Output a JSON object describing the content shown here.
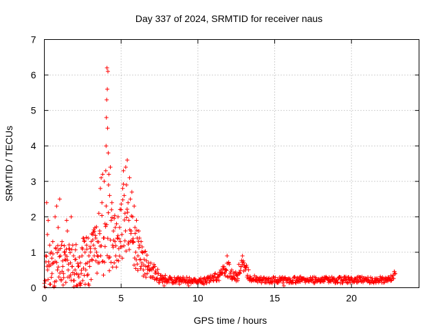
{
  "chart_data": {
    "type": "scatter",
    "title": "Day 337 of 2024, SRMTID for receiver naus",
    "xlabel": "GPS time / hours",
    "ylabel": "SRMTID / TECUs",
    "xlim": [
      0,
      24.4
    ],
    "ylim": [
      0,
      7
    ],
    "xticks": [
      0,
      5,
      10,
      15,
      20
    ],
    "yticks": [
      0,
      1,
      2,
      3,
      4,
      5,
      6,
      7
    ],
    "xtick_labels": [
      "0",
      "5",
      "10",
      "15",
      "20"
    ],
    "ytick_labels": [
      "0",
      "1",
      "2",
      "3",
      "4",
      "5",
      "6",
      "7"
    ],
    "grid": true,
    "marker": "+",
    "color": "#ff0000",
    "series": [
      {
        "name": "SRMTID",
        "points": [
          [
            0.05,
            0.2
          ],
          [
            0.1,
            0.9
          ],
          [
            0.15,
            2.4
          ],
          [
            0.2,
            1.5
          ],
          [
            0.25,
            1.9
          ],
          [
            0.3,
            0.6
          ],
          [
            0.35,
            1.2
          ],
          [
            0.4,
            0.1
          ],
          [
            0.45,
            1.0
          ],
          [
            0.5,
            0.4
          ],
          [
            0.55,
            1.3
          ],
          [
            0.6,
            0.7
          ],
          [
            0.65,
            0.05
          ],
          [
            0.7,
            2.0
          ],
          [
            0.75,
            1.1
          ],
          [
            0.8,
            2.3
          ],
          [
            0.85,
            0.5
          ],
          [
            0.9,
            1.7
          ],
          [
            0.95,
            0.3
          ],
          [
            1.0,
            2.5
          ],
          [
            1.05,
            0.9
          ],
          [
            1.1,
            0.2
          ],
          [
            1.15,
            1.3
          ],
          [
            1.2,
            0.6
          ],
          [
            1.25,
            0.4
          ],
          [
            1.3,
            1.0
          ],
          [
            1.35,
            0.8
          ],
          [
            1.4,
            0.15
          ],
          [
            1.45,
            1.9
          ],
          [
            1.5,
            1.6
          ],
          [
            1.55,
            0.5
          ],
          [
            1.6,
            1.1
          ],
          [
            1.65,
            0.3
          ],
          [
            1.7,
            0.7
          ],
          [
            1.75,
            2.0
          ],
          [
            1.8,
            0.6
          ],
          [
            1.85,
            1.2
          ],
          [
            1.9,
            0.9
          ],
          [
            1.95,
            0.2
          ],
          [
            2.0,
            0.5
          ],
          [
            2.05,
            0.8
          ],
          [
            2.1,
            0.4
          ],
          [
            2.15,
            0.05
          ],
          [
            2.2,
            0.6
          ],
          [
            2.25,
            0.3
          ],
          [
            2.3,
            0.1
          ],
          [
            2.35,
            0.7
          ],
          [
            2.4,
            0.4
          ],
          [
            2.45,
            0.9
          ],
          [
            2.5,
            0.2
          ],
          [
            2.55,
            0.55
          ],
          [
            2.6,
            0.35
          ],
          [
            2.65,
            1.0
          ],
          [
            2.7,
            0.5
          ],
          [
            2.75,
            1.2
          ],
          [
            2.8,
            0.7
          ],
          [
            2.85,
            1.4
          ],
          [
            2.9,
            0.9
          ],
          [
            2.95,
            0.6
          ],
          [
            3.0,
            1.1
          ],
          [
            3.05,
            1.3
          ],
          [
            3.1,
            0.8
          ],
          [
            3.15,
            1.5
          ],
          [
            3.2,
            1.2
          ],
          [
            3.25,
            0.9
          ],
          [
            3.3,
            1.1
          ],
          [
            3.35,
            1.4
          ],
          [
            3.4,
            1.0
          ],
          [
            3.45,
            1.3
          ],
          [
            3.5,
            0.7
          ],
          [
            3.55,
            2.1
          ],
          [
            3.6,
            1.6
          ],
          [
            3.65,
            2.8
          ],
          [
            3.7,
            3.1
          ],
          [
            3.75,
            2.4
          ],
          [
            3.8,
            3.2
          ],
          [
            3.85,
            1.4
          ],
          [
            3.9,
            3.0
          ],
          [
            3.95,
            1.8
          ],
          [
            4.0,
            3.3
          ],
          [
            4.02,
            4.0
          ],
          [
            4.04,
            4.8
          ],
          [
            4.06,
            5.3
          ],
          [
            4.08,
            6.2
          ],
          [
            4.1,
            5.6
          ],
          [
            4.12,
            4.5
          ],
          [
            4.14,
            6.1
          ],
          [
            4.16,
            3.8
          ],
          [
            4.18,
            2.9
          ],
          [
            4.2,
            3.2
          ],
          [
            4.25,
            2.6
          ],
          [
            4.3,
            3.4
          ],
          [
            4.35,
            1.9
          ],
          [
            4.4,
            2.4
          ],
          [
            4.45,
            1.2
          ],
          [
            4.5,
            1.6
          ],
          [
            4.55,
            0.7
          ],
          [
            4.6,
            1.3
          ],
          [
            4.65,
            0.9
          ],
          [
            4.7,
            1.8
          ],
          [
            4.75,
            1.4
          ],
          [
            4.8,
            2.0
          ],
          [
            4.85,
            1.1
          ],
          [
            4.9,
            1.7
          ],
          [
            4.95,
            1.3
          ],
          [
            5.0,
            2.2
          ],
          [
            5.05,
            1.5
          ],
          [
            5.1,
            2.8
          ],
          [
            5.15,
            3.3
          ],
          [
            5.2,
            2.6
          ],
          [
            5.25,
            2.1
          ],
          [
            5.3,
            3.4
          ],
          [
            5.35,
            2.9
          ],
          [
            5.4,
            3.6
          ],
          [
            5.45,
            2.4
          ],
          [
            5.5,
            1.9
          ],
          [
            5.55,
            3.1
          ],
          [
            5.6,
            2.5
          ],
          [
            5.65,
            1.6
          ],
          [
            5.7,
            2.7
          ],
          [
            5.75,
            2.0
          ],
          [
            5.8,
            1.3
          ],
          [
            5.85,
            2.3
          ],
          [
            5.9,
            1.7
          ],
          [
            5.95,
            1.0
          ],
          [
            6.0,
            1.9
          ],
          [
            6.05,
            1.4
          ],
          [
            6.1,
            0.9
          ],
          [
            6.15,
            1.6
          ],
          [
            6.2,
            1.2
          ],
          [
            6.25,
            0.8
          ],
          [
            6.3,
            1.3
          ],
          [
            6.35,
            0.7
          ],
          [
            6.4,
            1.0
          ],
          [
            6.45,
            0.5
          ],
          [
            6.5,
            0.8
          ],
          [
            6.6,
            0.6
          ],
          [
            6.7,
            0.4
          ],
          [
            6.8,
            0.7
          ],
          [
            6.9,
            0.3
          ],
          [
            7.0,
            0.5
          ],
          [
            7.1,
            0.3
          ],
          [
            7.2,
            0.6
          ],
          [
            7.3,
            0.25
          ],
          [
            7.4,
            0.4
          ],
          [
            7.5,
            0.2
          ],
          [
            7.6,
            0.35
          ],
          [
            7.7,
            0.15
          ],
          [
            7.8,
            0.05
          ],
          [
            7.9,
            0.25
          ],
          [
            8.0,
            0.2
          ],
          [
            8.2,
            0.3
          ],
          [
            8.4,
            0.15
          ],
          [
            8.6,
            0.25
          ],
          [
            8.8,
            0.1
          ],
          [
            9.0,
            0.2
          ],
          [
            9.2,
            0.15
          ],
          [
            9.4,
            0.05
          ],
          [
            9.6,
            0.2
          ],
          [
            9.8,
            0.25
          ],
          [
            10.0,
            0.15
          ],
          [
            10.2,
            0.2
          ],
          [
            10.4,
            0.1
          ],
          [
            10.6,
            0.25
          ],
          [
            10.8,
            0.2
          ],
          [
            11.0,
            0.3
          ],
          [
            11.2,
            0.2
          ],
          [
            11.4,
            0.35
          ],
          [
            11.5,
            0.5
          ],
          [
            11.6,
            0.4
          ],
          [
            11.7,
            0.6
          ],
          [
            11.8,
            0.5
          ],
          [
            11.9,
            0.9
          ],
          [
            12.0,
            0.7
          ],
          [
            12.1,
            0.4
          ],
          [
            12.2,
            0.5
          ],
          [
            12.3,
            0.3
          ],
          [
            12.4,
            0.25
          ],
          [
            12.5,
            0.35
          ],
          [
            12.6,
            0.2
          ],
          [
            12.7,
            0.4
          ],
          [
            12.8,
            0.6
          ],
          [
            12.9,
            0.9
          ],
          [
            13.0,
            0.7
          ],
          [
            13.1,
            0.5
          ],
          [
            13.2,
            0.3
          ],
          [
            13.4,
            0.25
          ],
          [
            13.6,
            0.2
          ],
          [
            13.8,
            0.3
          ],
          [
            14.0,
            0.2
          ],
          [
            14.2,
            0.25
          ],
          [
            14.4,
            0.15
          ],
          [
            14.6,
            0.2
          ],
          [
            14.8,
            0.25
          ],
          [
            15.0,
            0.2
          ],
          [
            15.2,
            0.15
          ],
          [
            15.4,
            0.25
          ],
          [
            15.6,
            0.05
          ],
          [
            15.8,
            0.2
          ],
          [
            16.0,
            0.25
          ],
          [
            16.2,
            0.15
          ],
          [
            16.4,
            0.2
          ],
          [
            16.6,
            0.25
          ],
          [
            16.8,
            0.2
          ],
          [
            17.0,
            0.15
          ],
          [
            17.2,
            0.2
          ],
          [
            17.4,
            0.25
          ],
          [
            17.6,
            0.15
          ],
          [
            17.8,
            0.2
          ],
          [
            18.0,
            0.25
          ],
          [
            18.2,
            0.2
          ],
          [
            18.4,
            0.25
          ],
          [
            18.6,
            0.2
          ],
          [
            18.8,
            0.25
          ],
          [
            19.0,
            0.2
          ],
          [
            19.2,
            0.3
          ],
          [
            19.4,
            0.2
          ],
          [
            19.6,
            0.25
          ],
          [
            19.8,
            0.15
          ],
          [
            20.0,
            0.2
          ],
          [
            20.2,
            0.25
          ],
          [
            20.4,
            0.15
          ],
          [
            20.6,
            0.3
          ],
          [
            20.8,
            0.2
          ],
          [
            21.0,
            0.25
          ],
          [
            21.2,
            0.15
          ],
          [
            21.4,
            0.2
          ],
          [
            21.6,
            0.25
          ],
          [
            21.8,
            0.2
          ],
          [
            22.0,
            0.25
          ],
          [
            22.2,
            0.2
          ],
          [
            22.4,
            0.3
          ],
          [
            22.5,
            0.25
          ],
          [
            22.6,
            0.2
          ],
          [
            22.7,
            0.35
          ],
          [
            22.8,
            0.45
          ],
          [
            22.85,
            0.4
          ]
        ],
        "band": {
          "x_start": 0.0,
          "x_end": 22.85,
          "step": 0.035,
          "profile": [
            [
              0.0,
              0.55,
              0.65
            ],
            [
              3.0,
              0.7,
              0.75
            ],
            [
              3.6,
              1.1,
              0.9
            ],
            [
              4.0,
              1.5,
              1.1
            ],
            [
              4.6,
              1.3,
              0.9
            ],
            [
              5.2,
              1.9,
              1.1
            ],
            [
              5.8,
              1.4,
              0.8
            ],
            [
              6.5,
              0.7,
              0.4
            ],
            [
              7.3,
              0.35,
              0.2
            ],
            [
              8.0,
              0.22,
              0.1
            ],
            [
              10.5,
              0.2,
              0.08
            ],
            [
              11.5,
              0.35,
              0.18
            ],
            [
              11.9,
              0.55,
              0.25
            ],
            [
              12.4,
              0.3,
              0.15
            ],
            [
              12.9,
              0.6,
              0.28
            ],
            [
              13.4,
              0.3,
              0.12
            ],
            [
              14.0,
              0.22,
              0.09
            ],
            [
              22.0,
              0.22,
              0.09
            ],
            [
              22.85,
              0.35,
              0.12
            ]
          ]
        }
      }
    ]
  }
}
